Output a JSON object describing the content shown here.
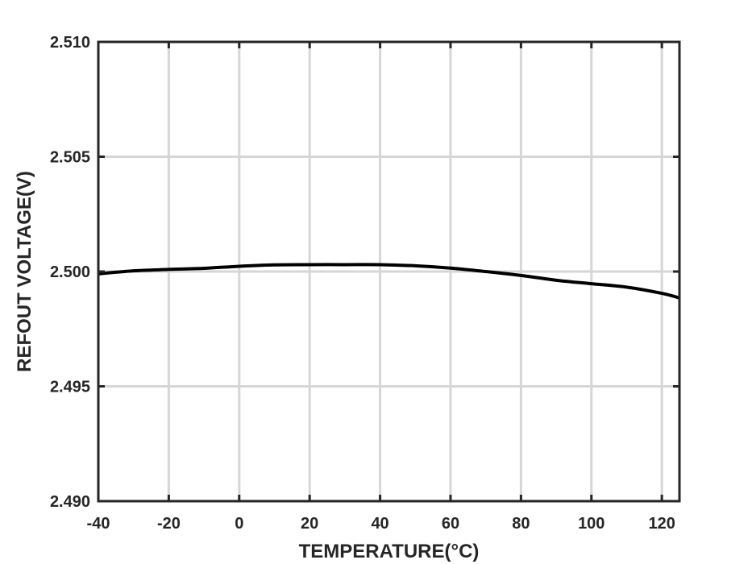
{
  "chart_data": {
    "type": "line",
    "title": "",
    "xlabel": "TEMPERATURE(°C)",
    "ylabel": "REFOUT VOLTAGE(V)",
    "xlim": [
      -40,
      125
    ],
    "ylim": [
      2.49,
      2.51
    ],
    "xticks": [
      -40,
      -20,
      0,
      20,
      40,
      60,
      80,
      100,
      120
    ],
    "yticks": [
      2.49,
      2.495,
      2.5,
      2.505,
      2.51
    ],
    "xtick_labels": [
      "-40",
      "-20",
      "0",
      "20",
      "40",
      "60",
      "80",
      "100",
      "120"
    ],
    "ytick_labels": [
      "2.490",
      "2.495",
      "2.500",
      "2.505",
      "2.510"
    ],
    "grid": true,
    "series": [
      {
        "color": "#000000",
        "x": [
          -40,
          -30,
          -20,
          -10,
          0,
          10,
          20,
          30,
          40,
          50,
          60,
          70,
          80,
          90,
          100,
          110,
          120,
          125
        ],
        "y": [
          2.4999,
          2.50003,
          2.50009,
          2.50014,
          2.50023,
          2.50029,
          2.5003,
          2.5003,
          2.5003,
          2.50025,
          2.50015,
          2.5,
          2.49983,
          2.49962,
          2.49947,
          2.49932,
          2.49905,
          2.49885
        ]
      }
    ]
  }
}
